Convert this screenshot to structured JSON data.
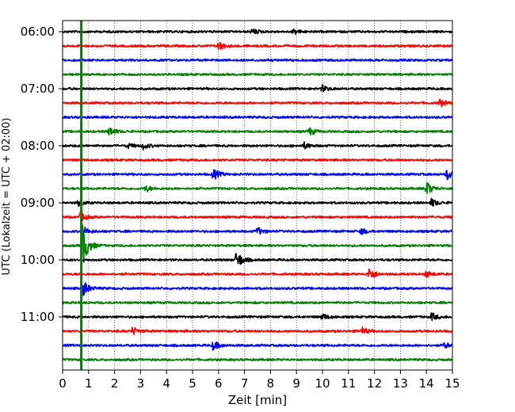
{
  "chart_data": {
    "type": "line",
    "xlabel": "Zeit  [min]",
    "ylabel": "UTC (Lokalzeit = UTC + 02:00)",
    "xlim": [
      0,
      15
    ],
    "x_ticks": [
      "0",
      "1",
      "2",
      "3",
      "4",
      "5",
      "6",
      "7",
      "8",
      "9",
      "10",
      "11",
      "12",
      "13",
      "14",
      "15"
    ],
    "y_ticks": [
      "06:00",
      "07:00",
      "08:00",
      "09:00",
      "10:00",
      "11:00"
    ],
    "grid": "vertical dotted",
    "trace_colors": [
      "#000000",
      "#ff0000",
      "#0000ff",
      "#008000"
    ],
    "traces": [
      {
        "start": "06:00",
        "color": "#000000",
        "events": [
          {
            "t": 7.3,
            "amp": 4
          },
          {
            "t": 8.9,
            "amp": 3
          }
        ]
      },
      {
        "start": "06:15",
        "color": "#ff0000",
        "events": [
          {
            "t": 6.0,
            "amp": 6
          }
        ]
      },
      {
        "start": "06:30",
        "color": "#0000ff",
        "events": []
      },
      {
        "start": "06:45",
        "color": "#008000",
        "events": []
      },
      {
        "start": "07:00",
        "color": "#000000",
        "events": [
          {
            "t": 10.0,
            "amp": 4
          }
        ]
      },
      {
        "start": "07:15",
        "color": "#ff0000",
        "events": [
          {
            "t": 14.5,
            "amp": 5
          }
        ]
      },
      {
        "start": "07:30",
        "color": "#0000ff",
        "events": []
      },
      {
        "start": "07:45",
        "color": "#008000",
        "events": [
          {
            "t": 1.8,
            "amp": 6
          },
          {
            "t": 9.5,
            "amp": 5
          }
        ]
      },
      {
        "start": "08:00",
        "color": "#000000",
        "events": [
          {
            "t": 2.5,
            "amp": 3
          },
          {
            "t": 3.1,
            "amp": 4
          },
          {
            "t": 9.3,
            "amp": 4
          }
        ]
      },
      {
        "start": "08:15",
        "color": "#ff0000",
        "events": []
      },
      {
        "start": "08:30",
        "color": "#0000ff",
        "events": [
          {
            "t": 5.8,
            "amp": 7
          },
          {
            "t": 14.8,
            "amp": 7
          }
        ]
      },
      {
        "start": "08:45",
        "color": "#008000",
        "events": [
          {
            "t": 3.2,
            "amp": 4
          },
          {
            "t": 14.0,
            "amp": 9
          }
        ]
      },
      {
        "start": "09:00",
        "color": "#000000",
        "events": [
          {
            "t": 0.6,
            "amp": 4
          },
          {
            "t": 14.2,
            "amp": 5
          }
        ]
      },
      {
        "start": "09:15",
        "color": "#ff0000",
        "events": [
          {
            "t": 0.7,
            "amp": 6
          }
        ]
      },
      {
        "start": "09:30",
        "color": "#0000ff",
        "events": [
          {
            "t": 0.8,
            "amp": 6
          },
          {
            "t": 7.5,
            "amp": 5
          },
          {
            "t": 11.5,
            "amp": 4
          }
        ]
      },
      {
        "start": "09:45",
        "color": "#008000",
        "events": [
          {
            "t": 0.75,
            "amp": 30
          }
        ]
      },
      {
        "start": "10:00",
        "color": "#000000",
        "events": [
          {
            "t": 6.7,
            "amp": 12
          }
        ]
      },
      {
        "start": "10:15",
        "color": "#ff0000",
        "events": [
          {
            "t": 11.8,
            "amp": 8
          },
          {
            "t": 14.0,
            "amp": 4
          }
        ]
      },
      {
        "start": "10:30",
        "color": "#0000ff",
        "events": [
          {
            "t": 0.8,
            "amp": 10
          }
        ]
      },
      {
        "start": "10:45",
        "color": "#008000",
        "events": []
      },
      {
        "start": "11:00",
        "color": "#000000",
        "events": [
          {
            "t": 10.0,
            "amp": 4
          },
          {
            "t": 14.2,
            "amp": 5
          }
        ]
      },
      {
        "start": "11:15",
        "color": "#ff0000",
        "events": [
          {
            "t": 2.7,
            "amp": 5
          },
          {
            "t": 11.5,
            "amp": 5
          }
        ]
      },
      {
        "start": "11:30",
        "color": "#0000ff",
        "events": [
          {
            "t": 5.8,
            "amp": 6
          },
          {
            "t": 14.7,
            "amp": 4
          }
        ]
      },
      {
        "start": "11:45",
        "color": "#008000",
        "events": []
      }
    ],
    "event_marker": {
      "t": 0.72,
      "start": "06:00",
      "end": "12:00",
      "color": "#008000"
    }
  }
}
